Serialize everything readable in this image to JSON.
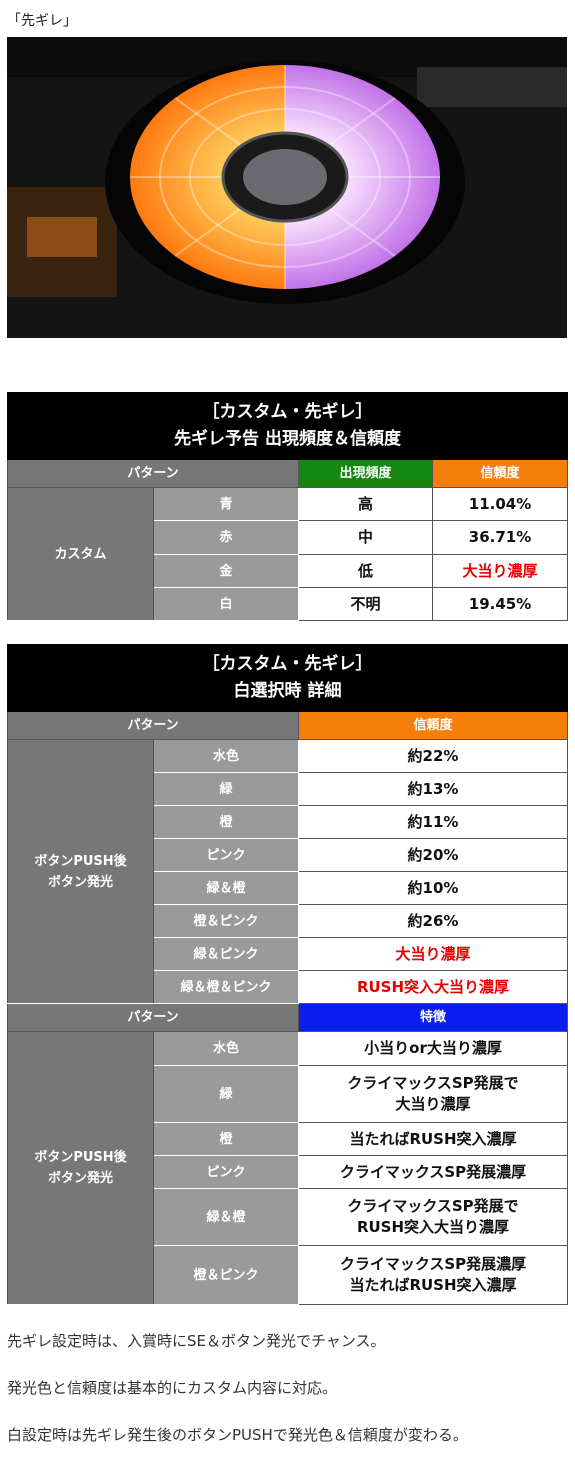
{
  "caption": "「先ギレ」",
  "tables": [
    {
      "title": [
        "［カスタム・先ギレ］",
        "先ギレ予告 出現頻度＆信頼度"
      ],
      "sections": [
        {
          "headers": [
            {
              "text": "パターン",
              "color": "#777777"
            },
            {
              "text": "出現頻度",
              "color": "#13870f"
            },
            {
              "text": "信頼度",
              "color": "#f57f0a"
            }
          ],
          "group": "カスタム",
          "rows": [
            {
              "pattern": "青",
              "cells": [
                {
                  "text": "高"
                },
                {
                  "text": "11.04%"
                }
              ]
            },
            {
              "pattern": "赤",
              "cells": [
                {
                  "text": "中"
                },
                {
                  "text": "36.71%"
                }
              ]
            },
            {
              "pattern": "金",
              "cells": [
                {
                  "text": "低"
                },
                {
                  "text": "大当り濃厚",
                  "color": "#e60000"
                }
              ]
            },
            {
              "pattern": "白",
              "cells": [
                {
                  "text": "不明"
                },
                {
                  "text": "19.45%"
                }
              ]
            }
          ]
        }
      ]
    },
    {
      "title": [
        "［カスタム・先ギレ］",
        "白選択時 詳細"
      ],
      "sections": [
        {
          "headers": [
            {
              "text": "パターン",
              "color": "#777777"
            },
            {
              "text": "信頼度",
              "color": "#f57f0a"
            }
          ],
          "group": "ボタンPUSH後\nボタン発光",
          "rows": [
            {
              "pattern": "水色",
              "cells": [
                {
                  "text": "約22%"
                }
              ]
            },
            {
              "pattern": "緑",
              "cells": [
                {
                  "text": "約13%"
                }
              ]
            },
            {
              "pattern": "橙",
              "cells": [
                {
                  "text": "約11%"
                }
              ]
            },
            {
              "pattern": "ピンク",
              "cells": [
                {
                  "text": "約20%"
                }
              ]
            },
            {
              "pattern": "緑＆橙",
              "cells": [
                {
                  "text": "約10%"
                }
              ]
            },
            {
              "pattern": "橙＆ピンク",
              "cells": [
                {
                  "text": "約26%"
                }
              ]
            },
            {
              "pattern": "緑＆ピンク",
              "cells": [
                {
                  "text": "大当り濃厚",
                  "color": "#e60000"
                }
              ]
            },
            {
              "pattern": "緑＆橙＆ピンク",
              "cells": [
                {
                  "text": "RUSH突入大当り濃厚",
                  "color": "#e60000"
                }
              ]
            }
          ]
        },
        {
          "headers": [
            {
              "text": "パターン",
              "color": "#777777"
            },
            {
              "text": "特徴",
              "color": "#0a1ef0"
            }
          ],
          "group": "ボタンPUSH後\nボタン発光",
          "rows": [
            {
              "pattern": "水色",
              "cells": [
                {
                  "text": "小当りor大当り濃厚"
                }
              ]
            },
            {
              "pattern": "緑",
              "cells": [
                {
                  "text": "クライマックスSP発展で\n大当り濃厚"
                }
              ]
            },
            {
              "pattern": "橙",
              "cells": [
                {
                  "text": "当たればRUSH突入濃厚"
                }
              ]
            },
            {
              "pattern": "ピンク",
              "cells": [
                {
                  "text": "クライマックスSP発展濃厚"
                }
              ]
            },
            {
              "pattern": "緑＆橙",
              "cells": [
                {
                  "text": "クライマックスSP発展で\nRUSH突入大当り濃厚"
                }
              ]
            },
            {
              "pattern": "橙＆ピンク",
              "cells": [
                {
                  "text": "クライマックスSP発展濃厚\n当たればRUSH突入濃厚"
                }
              ]
            }
          ]
        }
      ]
    }
  ],
  "paragraphs": [
    "先ギレ設定時は、入賞時にSE＆ボタン発光でチャンス。",
    "発光色と信頼度は基本的にカスタム内容に対応。",
    "白設定時は先ギレ発生後のボタンPUSHで発光色＆信頼度が変わる。"
  ]
}
